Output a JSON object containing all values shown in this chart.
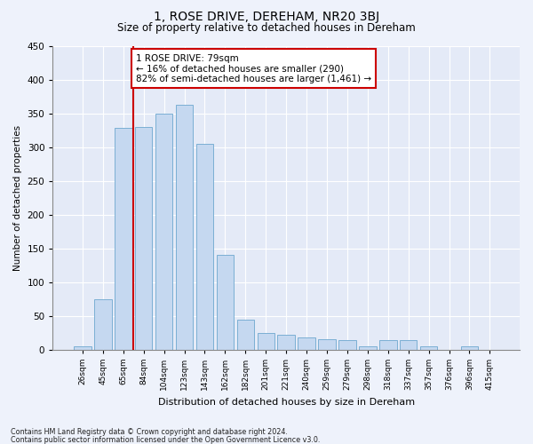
{
  "title": "1, ROSE DRIVE, DEREHAM, NR20 3BJ",
  "subtitle": "Size of property relative to detached houses in Dereham",
  "xlabel": "Distribution of detached houses by size in Dereham",
  "ylabel": "Number of detached properties",
  "categories": [
    "26sqm",
    "45sqm",
    "65sqm",
    "84sqm",
    "104sqm",
    "123sqm",
    "143sqm",
    "162sqm",
    "182sqm",
    "201sqm",
    "221sqm",
    "240sqm",
    "259sqm",
    "279sqm",
    "298sqm",
    "318sqm",
    "337sqm",
    "357sqm",
    "376sqm",
    "396sqm",
    "415sqm"
  ],
  "values": [
    5,
    75,
    328,
    330,
    350,
    362,
    305,
    140,
    45,
    25,
    22,
    18,
    15,
    14,
    5,
    14,
    14,
    5,
    0,
    5,
    0
  ],
  "bar_color": "#c5d8f0",
  "bar_edge_color": "#7bafd4",
  "vline_color": "#cc0000",
  "vline_x": 2.5,
  "annotation_text": "1 ROSE DRIVE: 79sqm\n← 16% of detached houses are smaller (290)\n82% of semi-detached houses are larger (1,461) →",
  "annotation_box_color": "white",
  "annotation_box_edge_color": "#cc0000",
  "ylim": [
    0,
    450
  ],
  "yticks": [
    0,
    50,
    100,
    150,
    200,
    250,
    300,
    350,
    400,
    450
  ],
  "footer_line1": "Contains HM Land Registry data © Crown copyright and database right 2024.",
  "footer_line2": "Contains public sector information licensed under the Open Government Licence v3.0.",
  "background_color": "#eef2fb",
  "plot_background_color": "#e4eaf7"
}
